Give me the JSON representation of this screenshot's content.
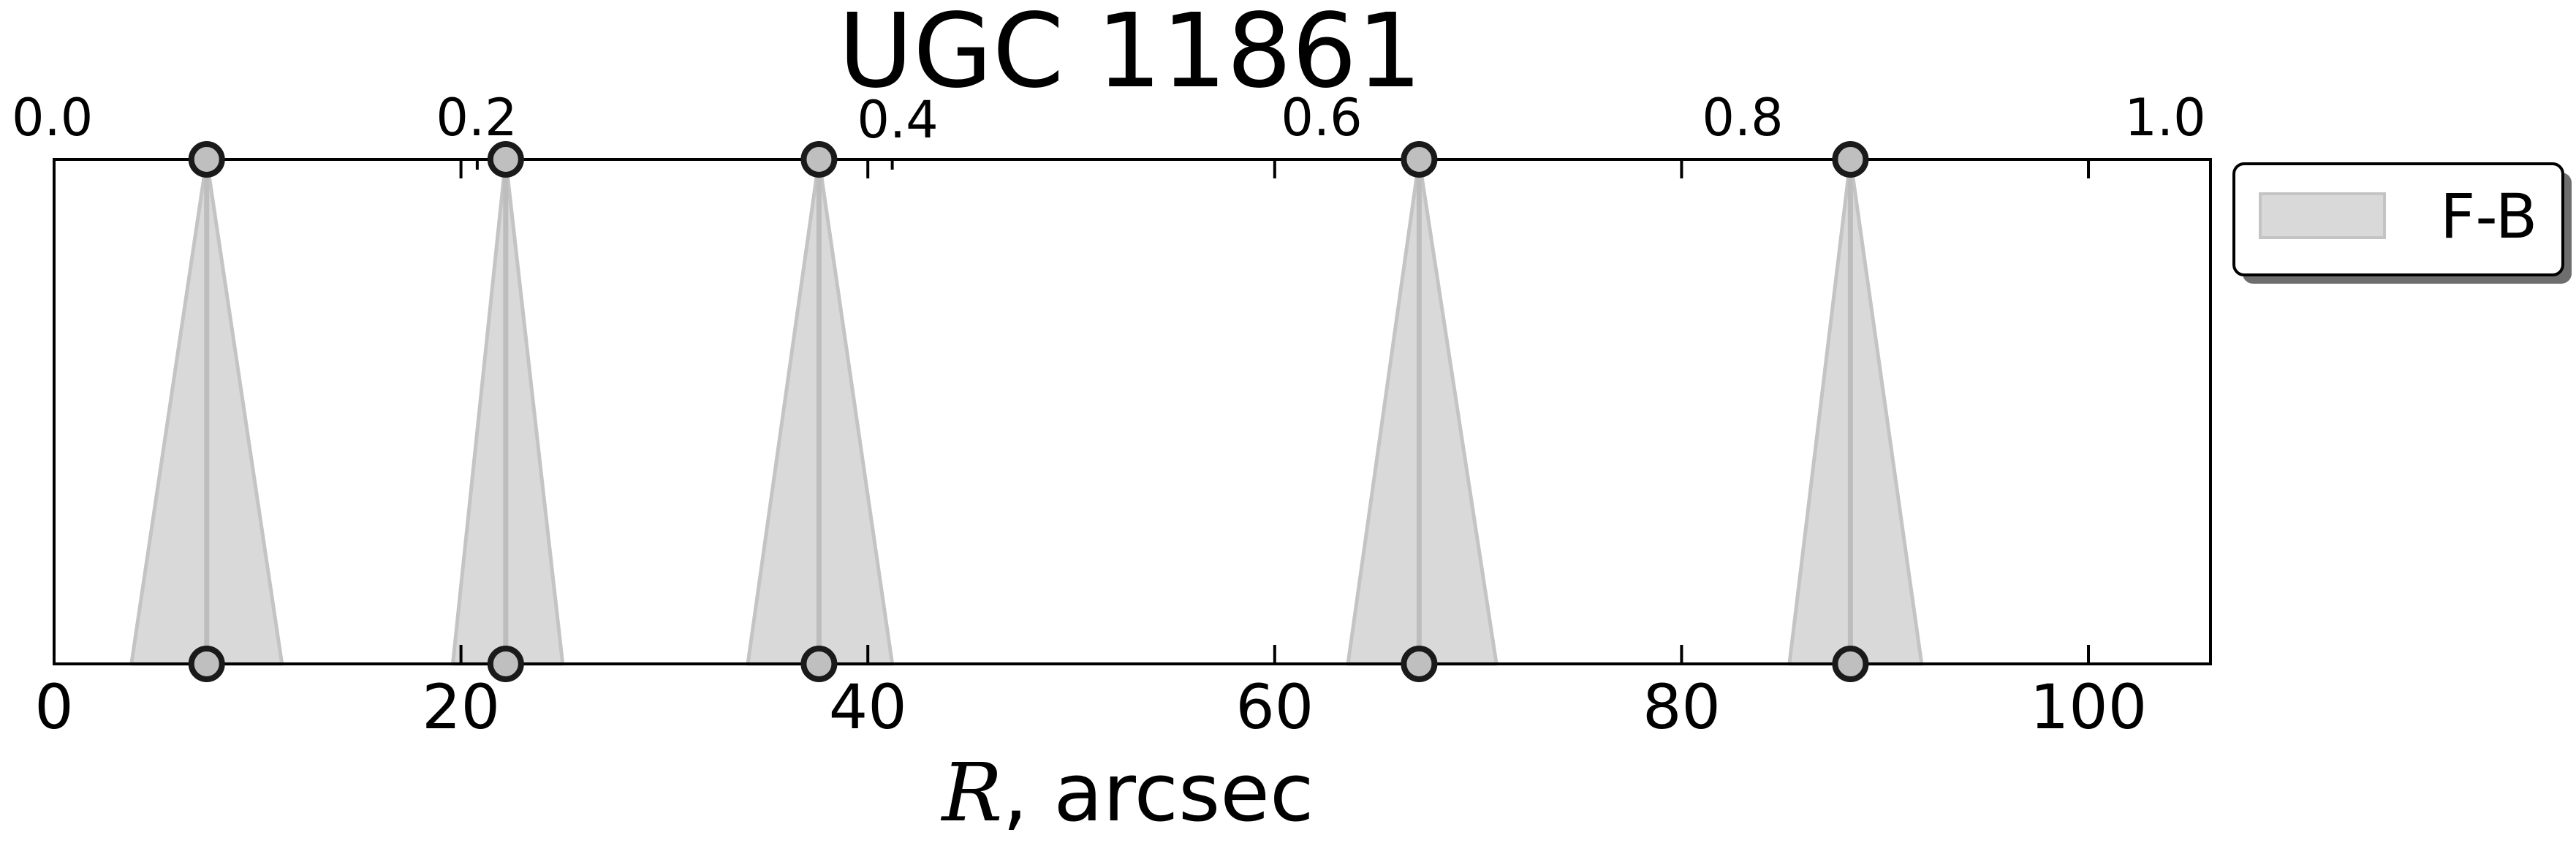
{
  "chart_data": {
    "type": "area",
    "title": "UGC 11861",
    "xlabel_symbol": "R",
    "xlabel_rest": ", arcsec",
    "xlim": [
      0,
      106
    ],
    "x_ticks": [
      0,
      20,
      40,
      60,
      80,
      100
    ],
    "x_tick_labels": [
      "0",
      "20",
      "40",
      "60",
      "80",
      "100"
    ],
    "top_axis": {
      "xlim": [
        0.0,
        1.0
      ],
      "tick_labels": [
        "0.0",
        "0.2",
        "0.4",
        "0.6",
        "0.8",
        "1.0"
      ],
      "major_ticks_bottom_units": [
        0,
        20,
        40,
        60,
        80,
        100
      ],
      "minor_ticks_bottom_units": [
        20.8,
        41.2
      ]
    },
    "grid": false,
    "legend": {
      "placement": "outside-top-right",
      "entries": [
        {
          "label": "F-B",
          "color": "#d9d9d9"
        }
      ]
    },
    "series": [
      {
        "name": "F-B",
        "color": "#d9d9d9",
        "edge_color": "#c4c4c4",
        "center_line_color": "#bdbdbd",
        "marker_face": "#bfbfbf",
        "marker_edge": "#1a1a1a",
        "bands": [
          {
            "x": 7.5,
            "low": 3.8,
            "high": 11.2
          },
          {
            "x": 22.2,
            "low": 19.6,
            "high": 25.0
          },
          {
            "x": 37.6,
            "low": 34.1,
            "high": 41.2
          },
          {
            "x": 67.1,
            "low": 63.6,
            "high": 70.9
          },
          {
            "x": 88.3,
            "low": 85.3,
            "high": 91.8
          }
        ]
      }
    ]
  }
}
